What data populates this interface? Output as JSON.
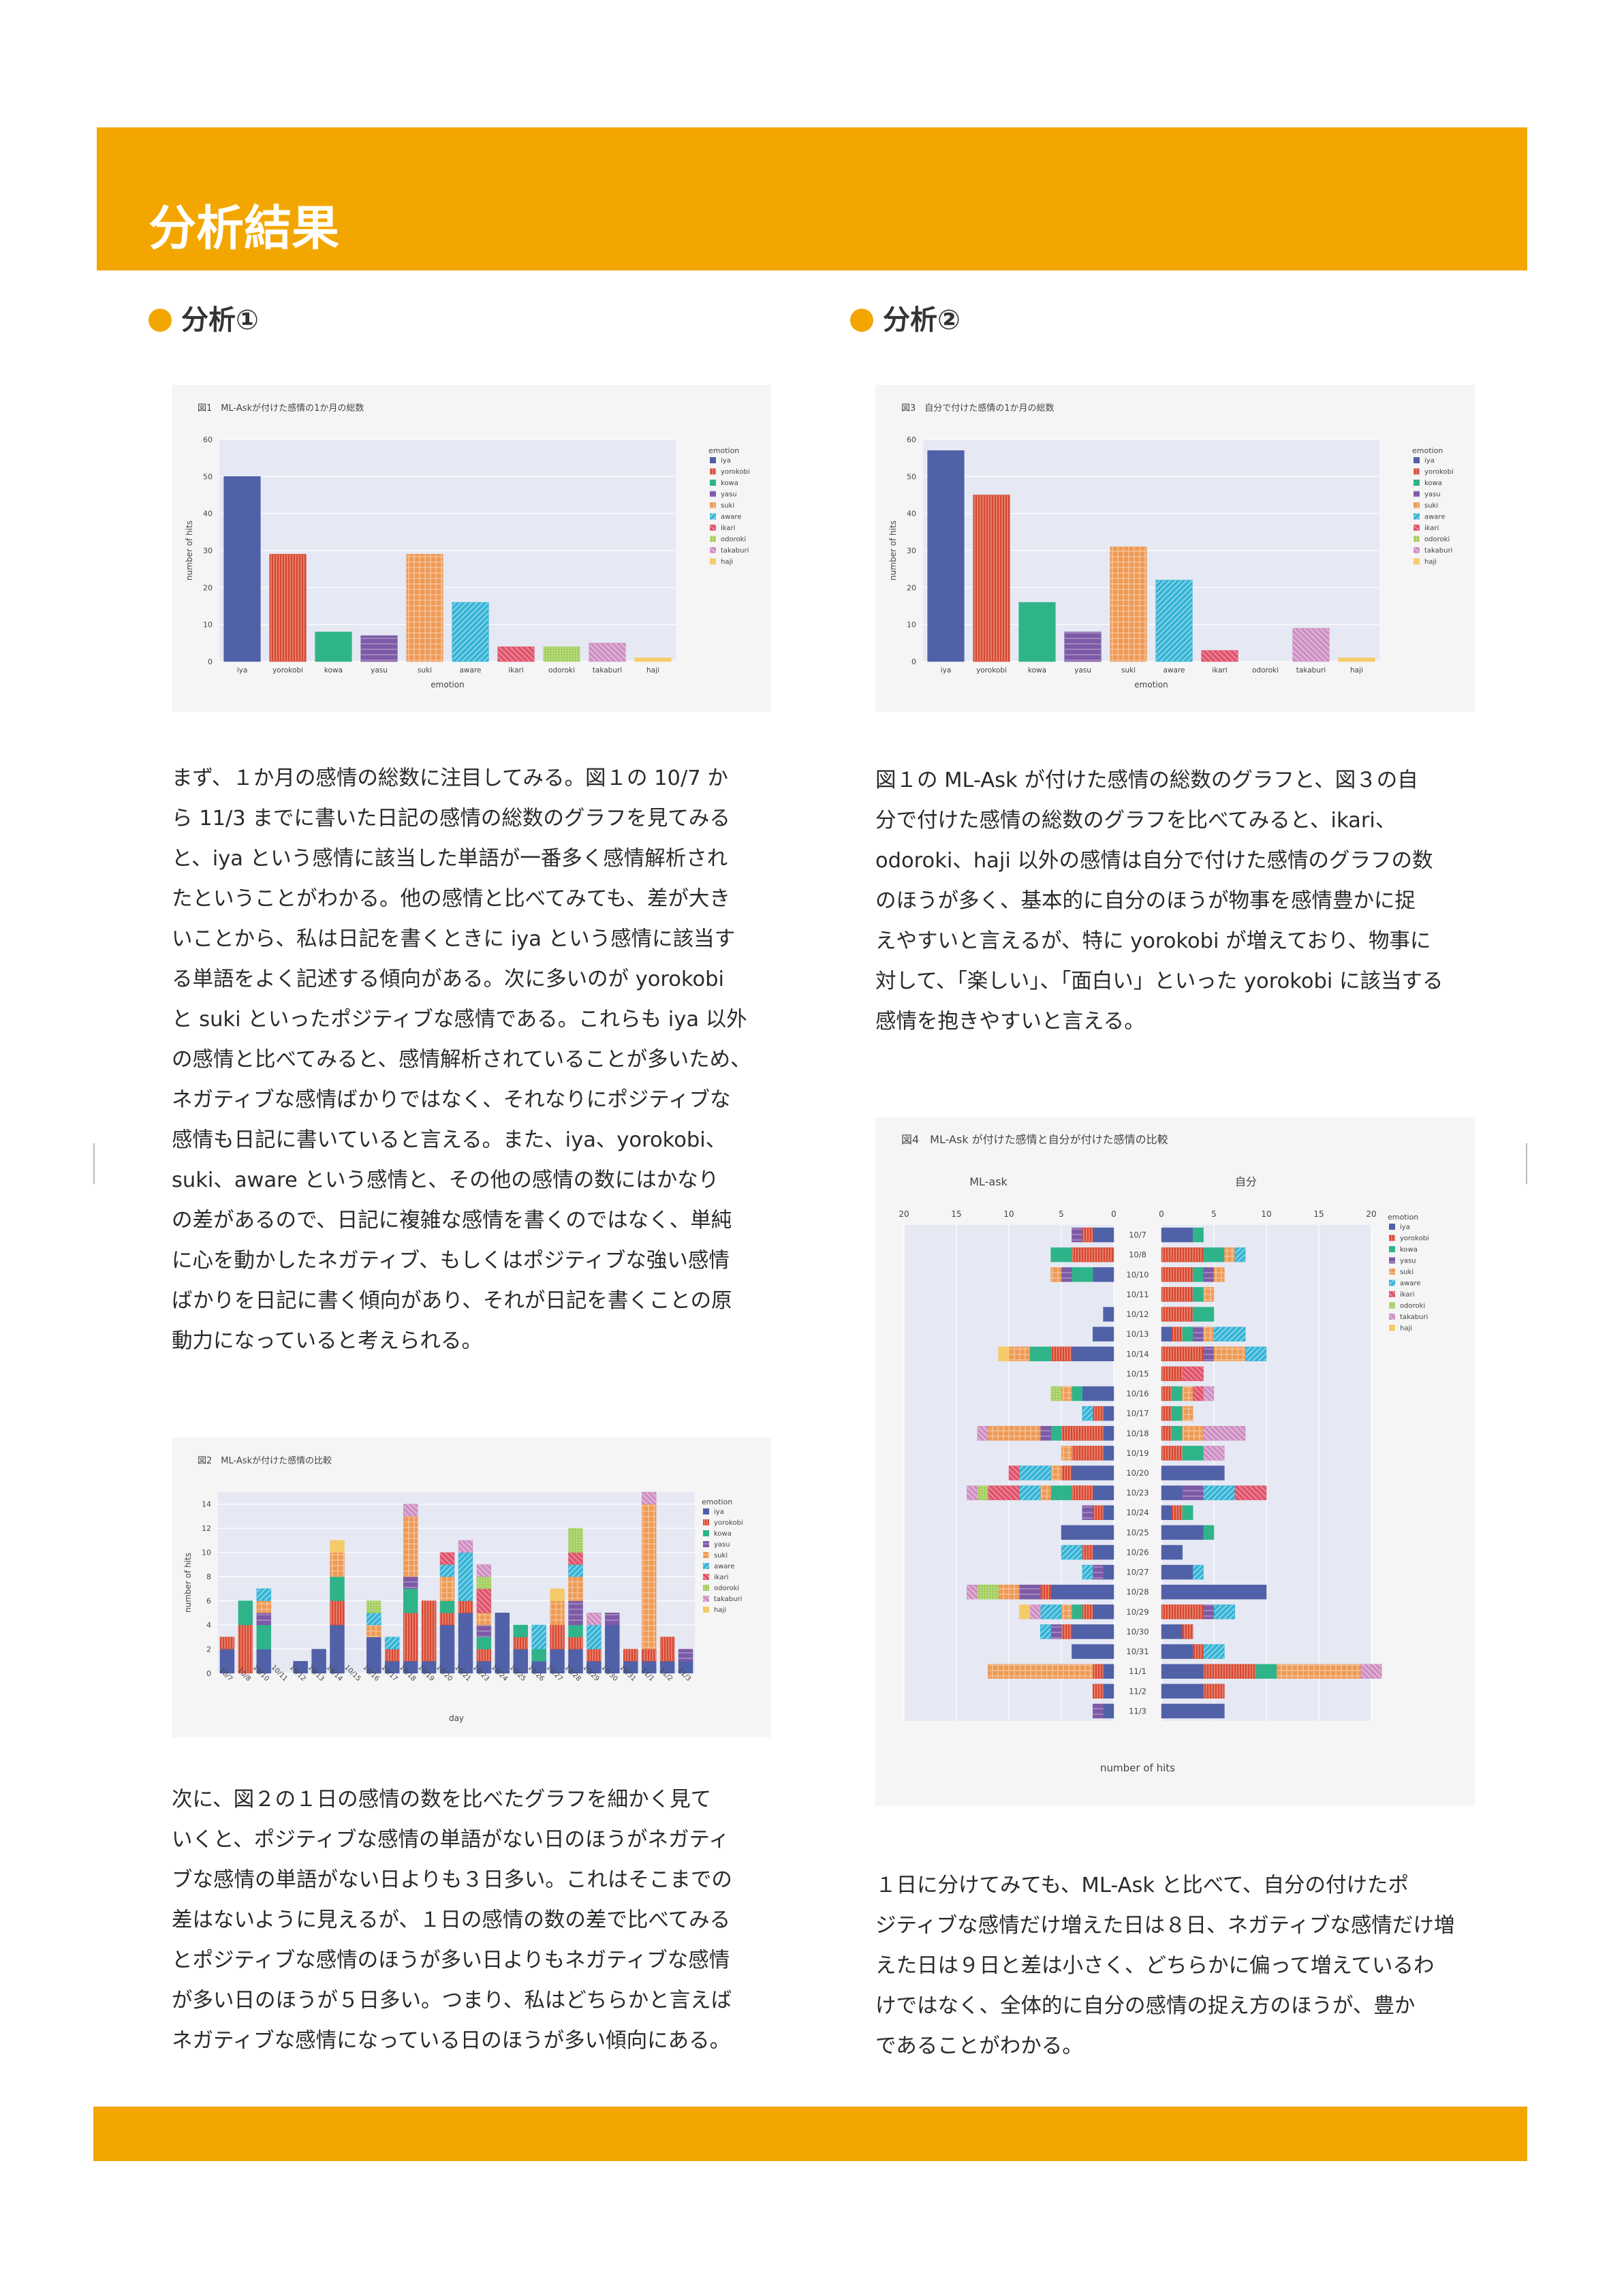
{
  "page": {
    "title": "分析結果"
  },
  "section1": {
    "heading": "分析①"
  },
  "section2": {
    "heading": "分析②"
  },
  "colors": {
    "accent": "#f3a600",
    "iya": "#5161a8",
    "yorokobi": "#d8472f",
    "kowa": "#2fb48a",
    "yasu": "#7d5aa6",
    "suki": "#ee9a55",
    "aware": "#36b4d6",
    "ikari": "#e0546d",
    "odoroki": "#a6cf62",
    "takaburi": "#cf8fc3",
    "haji": "#f5cb6a"
  },
  "fig1": {
    "caption": "図1　ML-Askが付けた感情の1か月の総数",
    "legend_title": "emotion"
  },
  "fig2": {
    "caption": "図2　ML-Askが付けた感情の比較",
    "legend_title": "emotion"
  },
  "fig3": {
    "caption": "図3　自分で付けた感情の1か月の総数",
    "legend_title": "emotion"
  },
  "fig4": {
    "caption": "図4　ML-Ask が付けた感情と自分が付けた感情の比較",
    "legend_title": "emotion",
    "left_title": "ML-ask",
    "right_title": "自分"
  },
  "text": {
    "p1": "まず、１か月の感情の総数に注目してみる。図１の 10/7 か\nら 11/3 までに書いた日記の感情の総数のグラフを見てみる\nと、iya という感情に該当した単語が一番多く感情解析され\nたということがわかる。他の感情と比べてみても、差が大き\nいことから、私は日記を書くときに iya という感情に該当す\nる単語をよく記述する傾向がある。次に多いのが yorokobi\nと suki といったポジティブな感情である。これらも iya 以外\nの感情と比べてみると、感情解析されていることが多いため、\nネガティブな感情ばかりではなく、それなりにポジティブな\n感情も日記に書いていると言える。また、iya、yorokobi、\nsuki、aware という感情と、その他の感情の数にはかなり\nの差があるので、日記に複雑な感情を書くのではなく、単純\nに心を動かしたネガティブ、もしくはポジティブな強い感情\nばかりを日記に書く傾向があり、それが日記を書くことの原\n動力になっていると考えられる。",
    "p2": "次に、図２の１日の感情の数を比べたグラフを細かく見て\nいくと、ポジティブな感情の単語がない日のほうがネガティ\nブな感情の単語がない日よりも３日多い。これはそこまでの\n差はないように見えるが、１日の感情の数の差で比べてみる\nとポジティブな感情のほうが多い日よりもネガティブな感情\nが多い日のほうが５日多い。つまり、私はどちらかと言えば\nネガティブな感情になっている日のほうが多い傾向にある。",
    "p3": "図１の ML-Ask が付けた感情の総数のグラフと、図３の自\n分で付けた感情の総数のグラフを比べてみると、ikari、\nodoroki、haji 以外の感情は自分で付けた感情のグラフの数\nのほうが多く、基本的に自分のほうが物事を感情豊かに捉\nえやすいと言えるが、特に yorokobi が増えており、物事に\n対して、「楽しい」、「面白い」といった yorokobi に該当する\n感情を抱きやすいと言える。",
    "p4": "１日に分けてみても、ML-Ask と比べて、自分の付けたポ\nジティブな感情だけ増えた日は８日、ネガティブな感情だけ増\nえた日は９日と差は小さく、どちらかに偏って増えているわ\nけではなく、全体的に自分の感情の捉え方のほうが、豊か\nであることがわかる。"
  },
  "chart_data": [
    {
      "type": "bar",
      "title": "図1　ML-Askが付けた感情の1か月の総数",
      "xlabel": "emotion",
      "ylabel": "number of hits",
      "ylim": [
        0,
        60
      ],
      "yticks": [
        0,
        10,
        20,
        30,
        40,
        50,
        60
      ],
      "categories": [
        "iya",
        "yorokobi",
        "kowa",
        "yasu",
        "suki",
        "aware",
        "ikari",
        "odoroki",
        "takaburi",
        "haji"
      ],
      "values": [
        50,
        29,
        8,
        7,
        29,
        16,
        4,
        4,
        5,
        1
      ],
      "legend": "top-right"
    },
    {
      "type": "bar",
      "title": "図3　自分で付けた感情の1か月の総数",
      "xlabel": "emotion",
      "ylabel": "number of hits",
      "ylim": [
        0,
        60
      ],
      "yticks": [
        0,
        10,
        20,
        30,
        40,
        50,
        60
      ],
      "categories": [
        "iya",
        "yorokobi",
        "kowa",
        "yasu",
        "suki",
        "aware",
        "ikari",
        "odoroki",
        "takaburi",
        "haji"
      ],
      "values": [
        57,
        45,
        16,
        8,
        31,
        22,
        3,
        0,
        9,
        1
      ],
      "legend": "top-right"
    },
    {
      "type": "bar",
      "stacked": true,
      "title": "図2　ML-Askが付けた感情の比較",
      "xlabel": "day",
      "ylabel": "number of hits",
      "ylim": [
        0,
        15
      ],
      "yticks": [
        0,
        2,
        4,
        6,
        8,
        10,
        12,
        14
      ],
      "categories": [
        "10/7",
        "10/8",
        "10/10",
        "10/11",
        "10/12",
        "10/13",
        "10/14",
        "10/15",
        "10/16",
        "10/17",
        "10/18",
        "10/19",
        "10/20",
        "10/21",
        "10/23",
        "10/24",
        "10/25",
        "10/26",
        "10/27",
        "10/28",
        "10/29",
        "10/30",
        "10/31",
        "11/1",
        "11/2",
        "11/3"
      ],
      "series": [
        {
          "name": "iya",
          "values": [
            2,
            0,
            2,
            0,
            1,
            2,
            4,
            0,
            3,
            1,
            1,
            1,
            4,
            5,
            1,
            5,
            2,
            1,
            2,
            2,
            1,
            4,
            1,
            1,
            1,
            1
          ]
        },
        {
          "name": "yorokobi",
          "values": [
            1,
            4,
            0,
            0,
            0,
            0,
            2,
            0,
            0,
            1,
            4,
            5,
            1,
            1,
            1,
            0,
            1,
            0,
            2,
            1,
            1,
            0,
            1,
            1,
            2,
            0
          ]
        },
        {
          "name": "kowa",
          "values": [
            0,
            2,
            2,
            0,
            0,
            0,
            2,
            0,
            0,
            0,
            2,
            0,
            1,
            0,
            1,
            0,
            1,
            1,
            0,
            1,
            0,
            0,
            0,
            0,
            0,
            0
          ]
        },
        {
          "name": "yasu",
          "values": [
            0,
            0,
            1,
            0,
            0,
            0,
            0,
            0,
            0,
            0,
            1,
            0,
            0,
            0,
            1,
            0,
            0,
            0,
            0,
            2,
            0,
            1,
            0,
            0,
            0,
            1
          ]
        },
        {
          "name": "suki",
          "values": [
            0,
            0,
            1,
            0,
            0,
            0,
            2,
            0,
            1,
            0,
            5,
            0,
            2,
            0,
            1,
            0,
            0,
            0,
            2,
            2,
            0,
            0,
            0,
            12,
            0,
            0
          ]
        },
        {
          "name": "aware",
          "values": [
            0,
            0,
            1,
            0,
            0,
            0,
            0,
            0,
            1,
            1,
            0,
            0,
            1,
            4,
            0,
            0,
            0,
            2,
            0,
            1,
            2,
            0,
            0,
            0,
            0,
            0
          ]
        },
        {
          "name": "ikari",
          "values": [
            0,
            0,
            0,
            0,
            0,
            0,
            0,
            0,
            0,
            0,
            0,
            0,
            1,
            0,
            2,
            0,
            0,
            0,
            0,
            1,
            0,
            0,
            0,
            0,
            0,
            0
          ]
        },
        {
          "name": "odoroki",
          "values": [
            0,
            0,
            0,
            0,
            0,
            0,
            0,
            0,
            1,
            0,
            0,
            0,
            0,
            0,
            1,
            0,
            0,
            0,
            0,
            2,
            0,
            0,
            0,
            0,
            0,
            0
          ]
        },
        {
          "name": "takaburi",
          "values": [
            0,
            0,
            0,
            0,
            0,
            0,
            0,
            0,
            0,
            0,
            1,
            0,
            0,
            1,
            1,
            0,
            0,
            0,
            0,
            0,
            1,
            0,
            0,
            1,
            0,
            0
          ]
        },
        {
          "name": "haji",
          "values": [
            0,
            0,
            0,
            0,
            0,
            0,
            1,
            0,
            0,
            0,
            0,
            0,
            0,
            0,
            0,
            0,
            0,
            0,
            1,
            0,
            0,
            0,
            0,
            0,
            0,
            0
          ]
        }
      ],
      "legend": "top-right"
    },
    {
      "type": "bar",
      "orientation": "horizontal",
      "stacked": true,
      "title": "図4　ML-Ask が付けた感情と自分が付けた感情の比較",
      "xlabel": "number of hits",
      "xlim": [
        0,
        20
      ],
      "xticks": [
        0,
        5,
        10,
        15,
        20
      ],
      "panels": [
        "ML-ask",
        "自分"
      ],
      "categories": [
        "10/7",
        "10/8",
        "10/10",
        "10/11",
        "10/12",
        "10/13",
        "10/14",
        "10/15",
        "10/16",
        "10/17",
        "10/18",
        "10/19",
        "10/20",
        "10/23",
        "10/24",
        "10/25",
        "10/26",
        "10/27",
        "10/28",
        "10/29",
        "10/30",
        "10/31",
        "11/1",
        "11/2",
        "11/3"
      ],
      "series_left": [
        {
          "name": "iya",
          "values": [
            2,
            0,
            2,
            0,
            1,
            2,
            4,
            0,
            3,
            1,
            1,
            1,
            4,
            2,
            1,
            5,
            2,
            1,
            6,
            2,
            4,
            4,
            1,
            1,
            1
          ]
        },
        {
          "name": "yorokobi",
          "values": [
            1,
            4,
            0,
            0,
            0,
            0,
            2,
            0,
            0,
            1,
            4,
            3,
            1,
            2,
            1,
            0,
            1,
            0,
            1,
            1,
            1,
            0,
            1,
            1,
            0
          ]
        },
        {
          "name": "kowa",
          "values": [
            0,
            2,
            2,
            0,
            0,
            0,
            2,
            0,
            1,
            0,
            1,
            0,
            0,
            2,
            0,
            0,
            0,
            0,
            0,
            1,
            0,
            0,
            0,
            0,
            0
          ]
        },
        {
          "name": "yasu",
          "values": [
            1,
            0,
            1,
            0,
            0,
            0,
            0,
            0,
            0,
            0,
            1,
            0,
            0,
            0,
            1,
            0,
            0,
            1,
            2,
            0,
            1,
            0,
            0,
            0,
            1
          ]
        },
        {
          "name": "suki",
          "values": [
            0,
            0,
            1,
            0,
            0,
            0,
            2,
            0,
            1,
            0,
            5,
            1,
            1,
            1,
            0,
            0,
            0,
            0,
            2,
            1,
            0,
            0,
            10,
            0,
            0
          ]
        },
        {
          "name": "aware",
          "values": [
            0,
            0,
            0,
            0,
            0,
            0,
            0,
            0,
            0,
            1,
            0,
            0,
            3,
            2,
            0,
            0,
            2,
            1,
            0,
            2,
            1,
            0,
            0,
            0,
            0
          ]
        },
        {
          "name": "ikari",
          "values": [
            0,
            0,
            0,
            0,
            0,
            0,
            0,
            0,
            0,
            0,
            0,
            0,
            1,
            3,
            0,
            0,
            0,
            0,
            0,
            0,
            0,
            0,
            0,
            0,
            0
          ]
        },
        {
          "name": "odoroki",
          "values": [
            0,
            0,
            0,
            0,
            0,
            0,
            0,
            0,
            1,
            0,
            0,
            0,
            0,
            1,
            0,
            0,
            0,
            0,
            2,
            0,
            0,
            0,
            0,
            0,
            0
          ]
        },
        {
          "name": "takaburi",
          "values": [
            0,
            0,
            0,
            0,
            0,
            0,
            0,
            0,
            0,
            0,
            1,
            0,
            0,
            1,
            0,
            0,
            0,
            0,
            1,
            1,
            0,
            0,
            0,
            0,
            0
          ]
        },
        {
          "name": "haji",
          "values": [
            0,
            0,
            0,
            0,
            0,
            0,
            1,
            0,
            0,
            0,
            0,
            0,
            0,
            0,
            0,
            0,
            0,
            0,
            0,
            1,
            0,
            0,
            0,
            0,
            0
          ]
        }
      ],
      "series_right": [
        {
          "name": "iya",
          "values": [
            3,
            0,
            0,
            0,
            0,
            1,
            0,
            0,
            0,
            0,
            0,
            0,
            6,
            2,
            1,
            4,
            2,
            3,
            10,
            0,
            2,
            3,
            4,
            4,
            6
          ]
        },
        {
          "name": "yorokobi",
          "values": [
            0,
            4,
            3,
            3,
            3,
            1,
            4,
            2,
            1,
            1,
            1,
            2,
            0,
            0,
            1,
            0,
            0,
            0,
            0,
            4,
            1,
            1,
            5,
            2,
            0
          ]
        },
        {
          "name": "kowa",
          "values": [
            1,
            2,
            1,
            1,
            2,
            1,
            0,
            0,
            1,
            1,
            1,
            2,
            0,
            0,
            1,
            1,
            0,
            0,
            0,
            0,
            0,
            0,
            2,
            0,
            0
          ]
        },
        {
          "name": "yasu",
          "values": [
            0,
            0,
            1,
            0,
            0,
            1,
            1,
            0,
            0,
            0,
            0,
            0,
            0,
            2,
            0,
            0,
            0,
            0,
            0,
            1,
            0,
            0,
            0,
            0,
            0
          ]
        },
        {
          "name": "suki",
          "values": [
            0,
            1,
            1,
            1,
            0,
            1,
            3,
            0,
            1,
            1,
            2,
            0,
            0,
            0,
            0,
            0,
            0,
            0,
            0,
            0,
            0,
            0,
            8,
            0,
            0
          ]
        },
        {
          "name": "aware",
          "values": [
            0,
            1,
            0,
            0,
            0,
            3,
            2,
            0,
            0,
            0,
            0,
            0,
            0,
            3,
            0,
            0,
            0,
            1,
            0,
            2,
            0,
            2,
            0,
            0,
            0
          ]
        },
        {
          "name": "ikari",
          "values": [
            0,
            0,
            0,
            0,
            0,
            0,
            0,
            2,
            1,
            0,
            0,
            0,
            0,
            3,
            0,
            0,
            0,
            0,
            0,
            0,
            0,
            0,
            0,
            0,
            0
          ]
        },
        {
          "name": "odoroki",
          "values": [
            0,
            0,
            0,
            0,
            0,
            0,
            0,
            0,
            0,
            0,
            0,
            0,
            0,
            0,
            0,
            0,
            0,
            0,
            0,
            0,
            0,
            0,
            0,
            0,
            0
          ]
        },
        {
          "name": "takaburi",
          "values": [
            0,
            0,
            0,
            0,
            0,
            0,
            0,
            0,
            1,
            0,
            4,
            2,
            0,
            0,
            0,
            0,
            0,
            0,
            0,
            0,
            0,
            0,
            2,
            0,
            0
          ]
        },
        {
          "name": "haji",
          "values": [
            0,
            0,
            0,
            0,
            0,
            0,
            0,
            0,
            0,
            0,
            0,
            0,
            0,
            0,
            0,
            0,
            0,
            0,
            0,
            0,
            0,
            0,
            0,
            0,
            0
          ]
        }
      ],
      "legend": "right"
    }
  ]
}
